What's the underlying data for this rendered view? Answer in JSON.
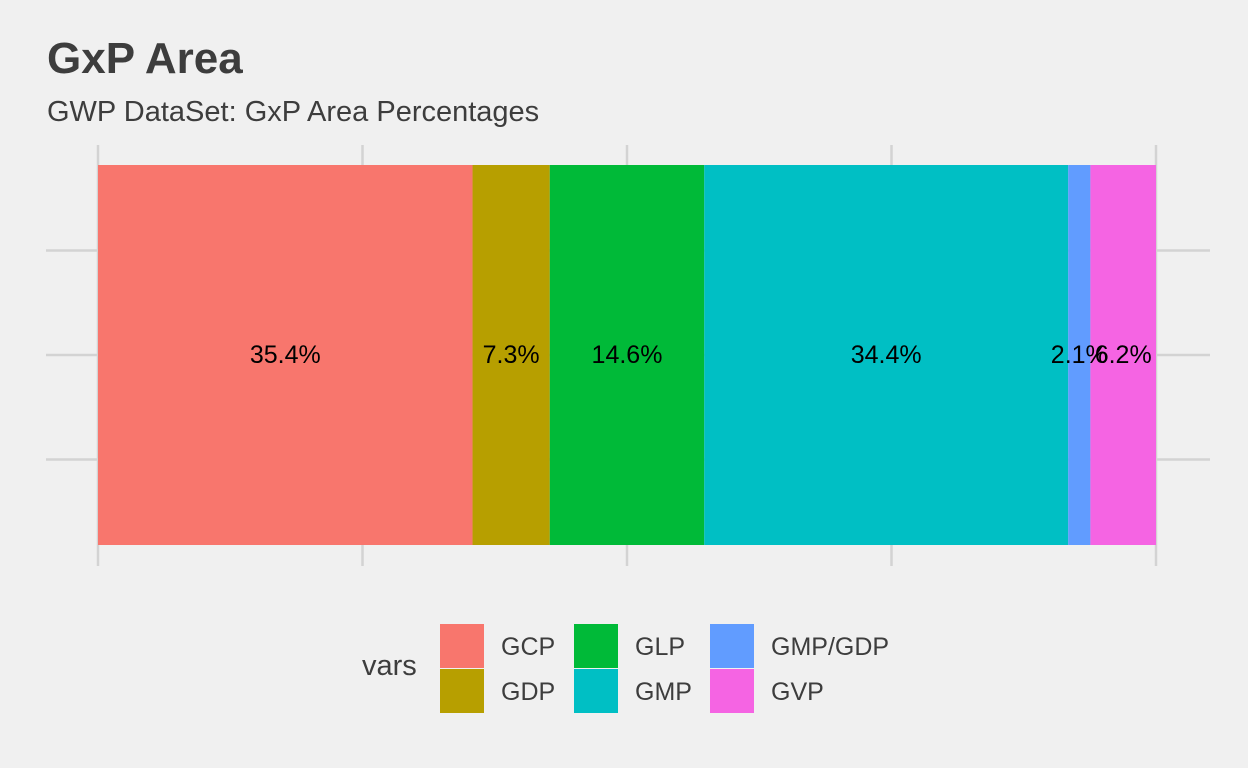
{
  "chart_data": {
    "type": "bar",
    "orientation": "horizontal-stacked",
    "title": "GxP Area",
    "subtitle": "GWP DataSet: GxP Area Percentages",
    "xlabel": "",
    "ylabel": "",
    "xlim": [
      0,
      100
    ],
    "grid": true,
    "legend": {
      "title": "vars",
      "placement": "bottom"
    },
    "series": [
      {
        "name": "GCP",
        "value": 35.4,
        "label": "35.4%",
        "color": "#f8766d"
      },
      {
        "name": "GDP",
        "value": 7.3,
        "label": "7.3%",
        "color": "#b79f00"
      },
      {
        "name": "GLP",
        "value": 14.6,
        "label": "14.6%",
        "color": "#00ba38"
      },
      {
        "name": "GMP",
        "value": 34.4,
        "label": "34.4%",
        "color": "#00bfc4"
      },
      {
        "name": "GMP/GDP",
        "value": 2.1,
        "label": "2.1%",
        "color": "#619cff"
      },
      {
        "name": "GVP",
        "value": 6.2,
        "label": "6.2%",
        "color": "#f564e3"
      }
    ]
  }
}
